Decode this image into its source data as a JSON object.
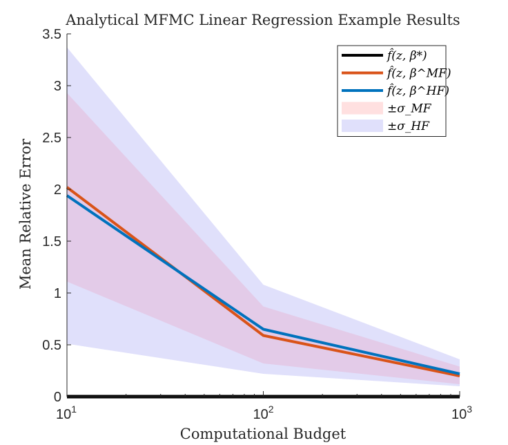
{
  "chart_data": {
    "type": "line",
    "title": "Analytical MFMC Linear Regression Example Results",
    "xlabel": "Computational Budget",
    "ylabel": "Mean Relative Error",
    "xscale": "log",
    "xlim": [
      10,
      1000
    ],
    "ylim": [
      0,
      3.5
    ],
    "x": [
      10,
      100,
      1000
    ],
    "xtick_labels": [
      {
        "base": "10",
        "exp": "1"
      },
      {
        "base": "10",
        "exp": "2"
      },
      {
        "base": "10",
        "exp": "3"
      }
    ],
    "yticks": [
      0,
      0.5,
      1,
      1.5,
      2,
      2.5,
      3,
      3.5
    ],
    "ytick_labels": [
      "0",
      "0.5",
      "1",
      "1.5",
      "2",
      "2.5",
      "3",
      "3.5"
    ],
    "bands": [
      {
        "name": "±σ_HF",
        "color": "#e0e0fb",
        "upper": [
          3.37,
          1.08,
          0.36
        ],
        "lower": [
          0.51,
          0.22,
          0.1
        ]
      },
      {
        "name": "±σ_MF",
        "color": "#e3cbe8",
        "upper": [
          2.93,
          0.87,
          0.29
        ],
        "lower": [
          1.11,
          0.32,
          0.12
        ]
      }
    ],
    "series": [
      {
        "name": "f̂(z, β*)",
        "color": "#000000",
        "values": [
          0,
          0,
          0
        ]
      },
      {
        "name": "f̂(z, β^MF)",
        "color": "#d95319",
        "values": [
          2.02,
          0.59,
          0.2
        ]
      },
      {
        "name": "f̂(z, β^HF)",
        "color": "#0072bd",
        "values": [
          1.94,
          0.65,
          0.22
        ]
      }
    ],
    "legend": {
      "placement": "top-right",
      "entries": [
        {
          "text": "f̂(z, β*)",
          "color": "#000000",
          "kind": "line"
        },
        {
          "text": "f̂(z, β^MF)",
          "color": "#d95319",
          "kind": "line"
        },
        {
          "text": "f̂(z, β^HF)",
          "color": "#0072bd",
          "kind": "line"
        },
        {
          "text": "±σ_MF",
          "color": "#ffe0e0",
          "kind": "patch"
        },
        {
          "text": "±σ_HF",
          "color": "#e0e0fb",
          "kind": "patch"
        }
      ]
    },
    "grid": false
  }
}
